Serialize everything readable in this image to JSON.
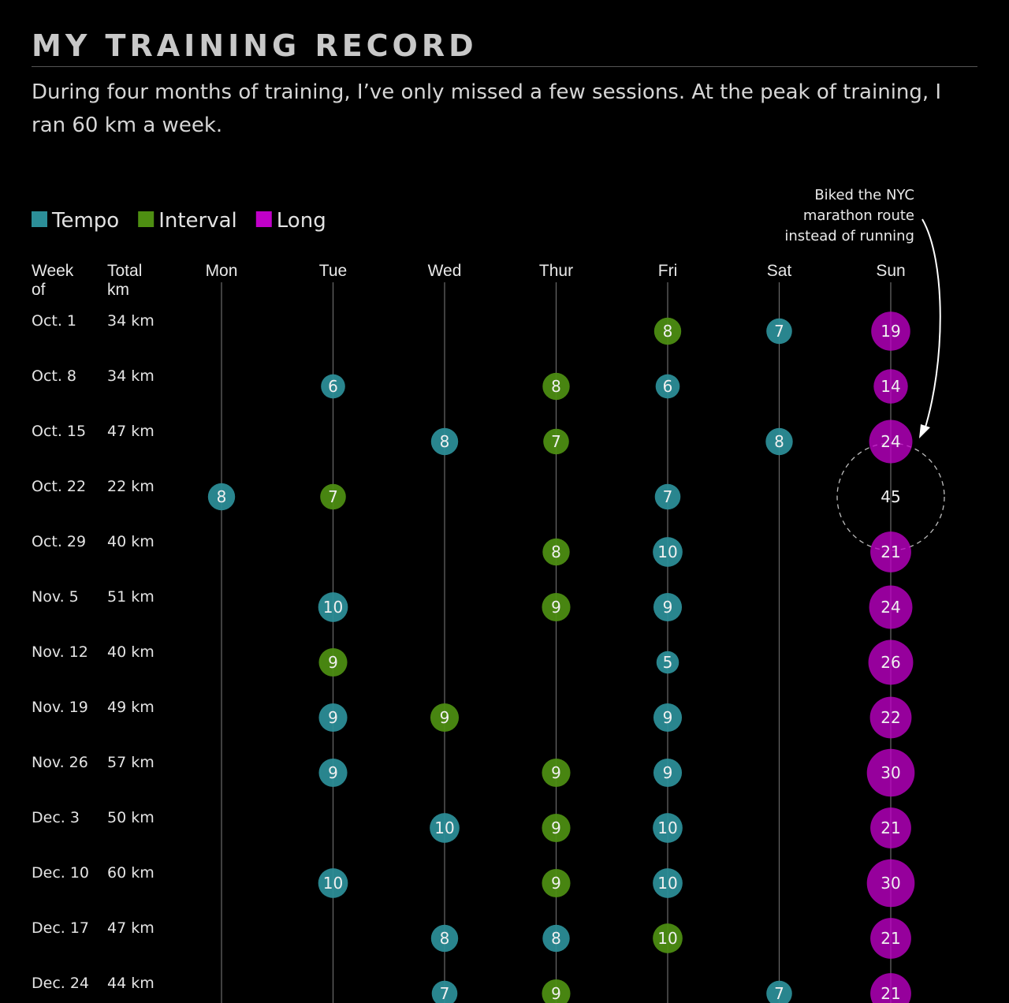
{
  "title": "MY TRAINING RECORD",
  "subtitle": "During four months of training, I’ve only missed a few sessions. At the peak of training, I ran 60 km a week.",
  "colors": {
    "Tempo": "#2c8f99",
    "Interval": "#4e8f12",
    "Long": "#c000c8"
  },
  "legend": [
    {
      "label": "Tempo",
      "color": "#2c8f99"
    },
    {
      "label": "Interval",
      "color": "#4e8f12"
    },
    {
      "label": "Long",
      "color": "#c000c8"
    }
  ],
  "annotation": {
    "lines": [
      "Biked the NYC",
      "marathon route",
      "instead of running"
    ]
  },
  "chart_data": {
    "type": "scatter",
    "title": "MY TRAINING RECORD",
    "week_header": [
      "Week",
      "of"
    ],
    "total_header": [
      "Total",
      "km"
    ],
    "days": [
      "Mon",
      "Tue",
      "Wed",
      "Thur",
      "Fri",
      "Sat",
      "Sun"
    ],
    "weeks": [
      {
        "week": "Oct. 1",
        "total": "34 km",
        "sessions": [
          {
            "day": "Fri",
            "km": 8,
            "type": "Interval"
          },
          {
            "day": "Sat",
            "km": 7,
            "type": "Tempo"
          },
          {
            "day": "Sun",
            "km": 19,
            "type": "Long"
          }
        ]
      },
      {
        "week": "Oct. 8",
        "total": "34 km",
        "sessions": [
          {
            "day": "Tue",
            "km": 6,
            "type": "Tempo"
          },
          {
            "day": "Thur",
            "km": 8,
            "type": "Interval"
          },
          {
            "day": "Fri",
            "km": 6,
            "type": "Tempo"
          },
          {
            "day": "Sun",
            "km": 14,
            "type": "Long"
          }
        ]
      },
      {
        "week": "Oct. 15",
        "total": "47 km",
        "sessions": [
          {
            "day": "Wed",
            "km": 8,
            "type": "Tempo"
          },
          {
            "day": "Thur",
            "km": 7,
            "type": "Interval"
          },
          {
            "day": "Sat",
            "km": 8,
            "type": "Tempo"
          },
          {
            "day": "Sun",
            "km": 24,
            "type": "Long"
          }
        ]
      },
      {
        "week": "Oct. 22",
        "total": "22 km",
        "sessions": [
          {
            "day": "Mon",
            "km": 8,
            "type": "Tempo"
          },
          {
            "day": "Tue",
            "km": 7,
            "type": "Interval"
          },
          {
            "day": "Fri",
            "km": 7,
            "type": "Tempo"
          },
          {
            "day": "Sun",
            "km": 45,
            "type": "Biked"
          }
        ]
      },
      {
        "week": "Oct. 29",
        "total": "40 km",
        "sessions": [
          {
            "day": "Thur",
            "km": 8,
            "type": "Interval"
          },
          {
            "day": "Fri",
            "km": 10,
            "type": "Tempo"
          },
          {
            "day": "Sun",
            "km": 21,
            "type": "Long"
          }
        ]
      },
      {
        "week": "Nov. 5",
        "total": "51 km",
        "sessions": [
          {
            "day": "Tue",
            "km": 10,
            "type": "Tempo"
          },
          {
            "day": "Thur",
            "km": 9,
            "type": "Interval"
          },
          {
            "day": "Fri",
            "km": 9,
            "type": "Tempo"
          },
          {
            "day": "Sun",
            "km": 24,
            "type": "Long"
          }
        ]
      },
      {
        "week": "Nov. 12",
        "total": "40 km",
        "sessions": [
          {
            "day": "Tue",
            "km": 9,
            "type": "Interval"
          },
          {
            "day": "Fri",
            "km": 5,
            "type": "Tempo"
          },
          {
            "day": "Sun",
            "km": 26,
            "type": "Long"
          }
        ]
      },
      {
        "week": "Nov. 19",
        "total": "49 km",
        "sessions": [
          {
            "day": "Tue",
            "km": 9,
            "type": "Tempo"
          },
          {
            "day": "Wed",
            "km": 9,
            "type": "Interval"
          },
          {
            "day": "Fri",
            "km": 9,
            "type": "Tempo"
          },
          {
            "day": "Sun",
            "km": 22,
            "type": "Long"
          }
        ]
      },
      {
        "week": "Nov. 26",
        "total": "57 km",
        "sessions": [
          {
            "day": "Tue",
            "km": 9,
            "type": "Tempo"
          },
          {
            "day": "Thur",
            "km": 9,
            "type": "Interval"
          },
          {
            "day": "Fri",
            "km": 9,
            "type": "Tempo"
          },
          {
            "day": "Sun",
            "km": 30,
            "type": "Long"
          }
        ]
      },
      {
        "week": "Dec. 3",
        "total": "50 km",
        "sessions": [
          {
            "day": "Wed",
            "km": 10,
            "type": "Tempo"
          },
          {
            "day": "Thur",
            "km": 9,
            "type": "Interval"
          },
          {
            "day": "Fri",
            "km": 10,
            "type": "Tempo"
          },
          {
            "day": "Sun",
            "km": 21,
            "type": "Long"
          }
        ]
      },
      {
        "week": "Dec. 10",
        "total": "60 km",
        "sessions": [
          {
            "day": "Tue",
            "km": 10,
            "type": "Tempo"
          },
          {
            "day": "Thur",
            "km": 9,
            "type": "Interval"
          },
          {
            "day": "Fri",
            "km": 10,
            "type": "Tempo"
          },
          {
            "day": "Sun",
            "km": 30,
            "type": "Long"
          }
        ]
      },
      {
        "week": "Dec. 17",
        "total": "47 km",
        "sessions": [
          {
            "day": "Wed",
            "km": 8,
            "type": "Tempo"
          },
          {
            "day": "Thur",
            "km": 8,
            "type": "Tempo"
          },
          {
            "day": "Fri",
            "km": 10,
            "type": "Interval"
          },
          {
            "day": "Sun",
            "km": 21,
            "type": "Long"
          }
        ]
      },
      {
        "week": "Dec. 24",
        "total": "44 km",
        "sessions": [
          {
            "day": "Wed",
            "km": 7,
            "type": "Tempo"
          },
          {
            "day": "Thur",
            "km": 9,
            "type": "Interval"
          },
          {
            "day": "Sat",
            "km": 7,
            "type": "Tempo"
          },
          {
            "day": "Sun",
            "km": 21,
            "type": "Long"
          }
        ]
      }
    ]
  }
}
